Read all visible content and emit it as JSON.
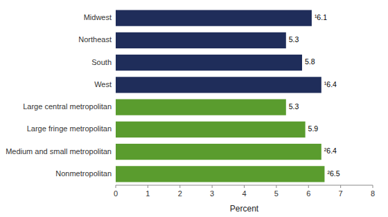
{
  "chart_data": {
    "type": "bar",
    "orientation": "horizontal",
    "categories": [
      "Midwest",
      "Northeast",
      "South",
      "West",
      "Large central metropolitan",
      "Large fringe metropolitan",
      "Medium and small metropolitan",
      "Nonmetropolitan"
    ],
    "values": [
      6.1,
      5.3,
      5.8,
      6.4,
      5.3,
      5.9,
      6.4,
      6.5
    ],
    "value_labels": [
      "¹6.1",
      "5.3",
      "5.8",
      "¹6.4",
      "5.3",
      "5.9",
      "²6.4",
      "²6.5"
    ],
    "colors": [
      "#1f2d5a",
      "#1f2d5a",
      "#1f2d5a",
      "#1f2d5a",
      "#5a9c2e",
      "#5a9c2e",
      "#5a9c2e",
      "#5a9c2e"
    ],
    "xlabel": "Percent",
    "xlim": [
      0,
      8
    ],
    "xticks": [
      0,
      1,
      2,
      3,
      4,
      5,
      6,
      7,
      8
    ],
    "data_labels": true,
    "grid": false
  }
}
